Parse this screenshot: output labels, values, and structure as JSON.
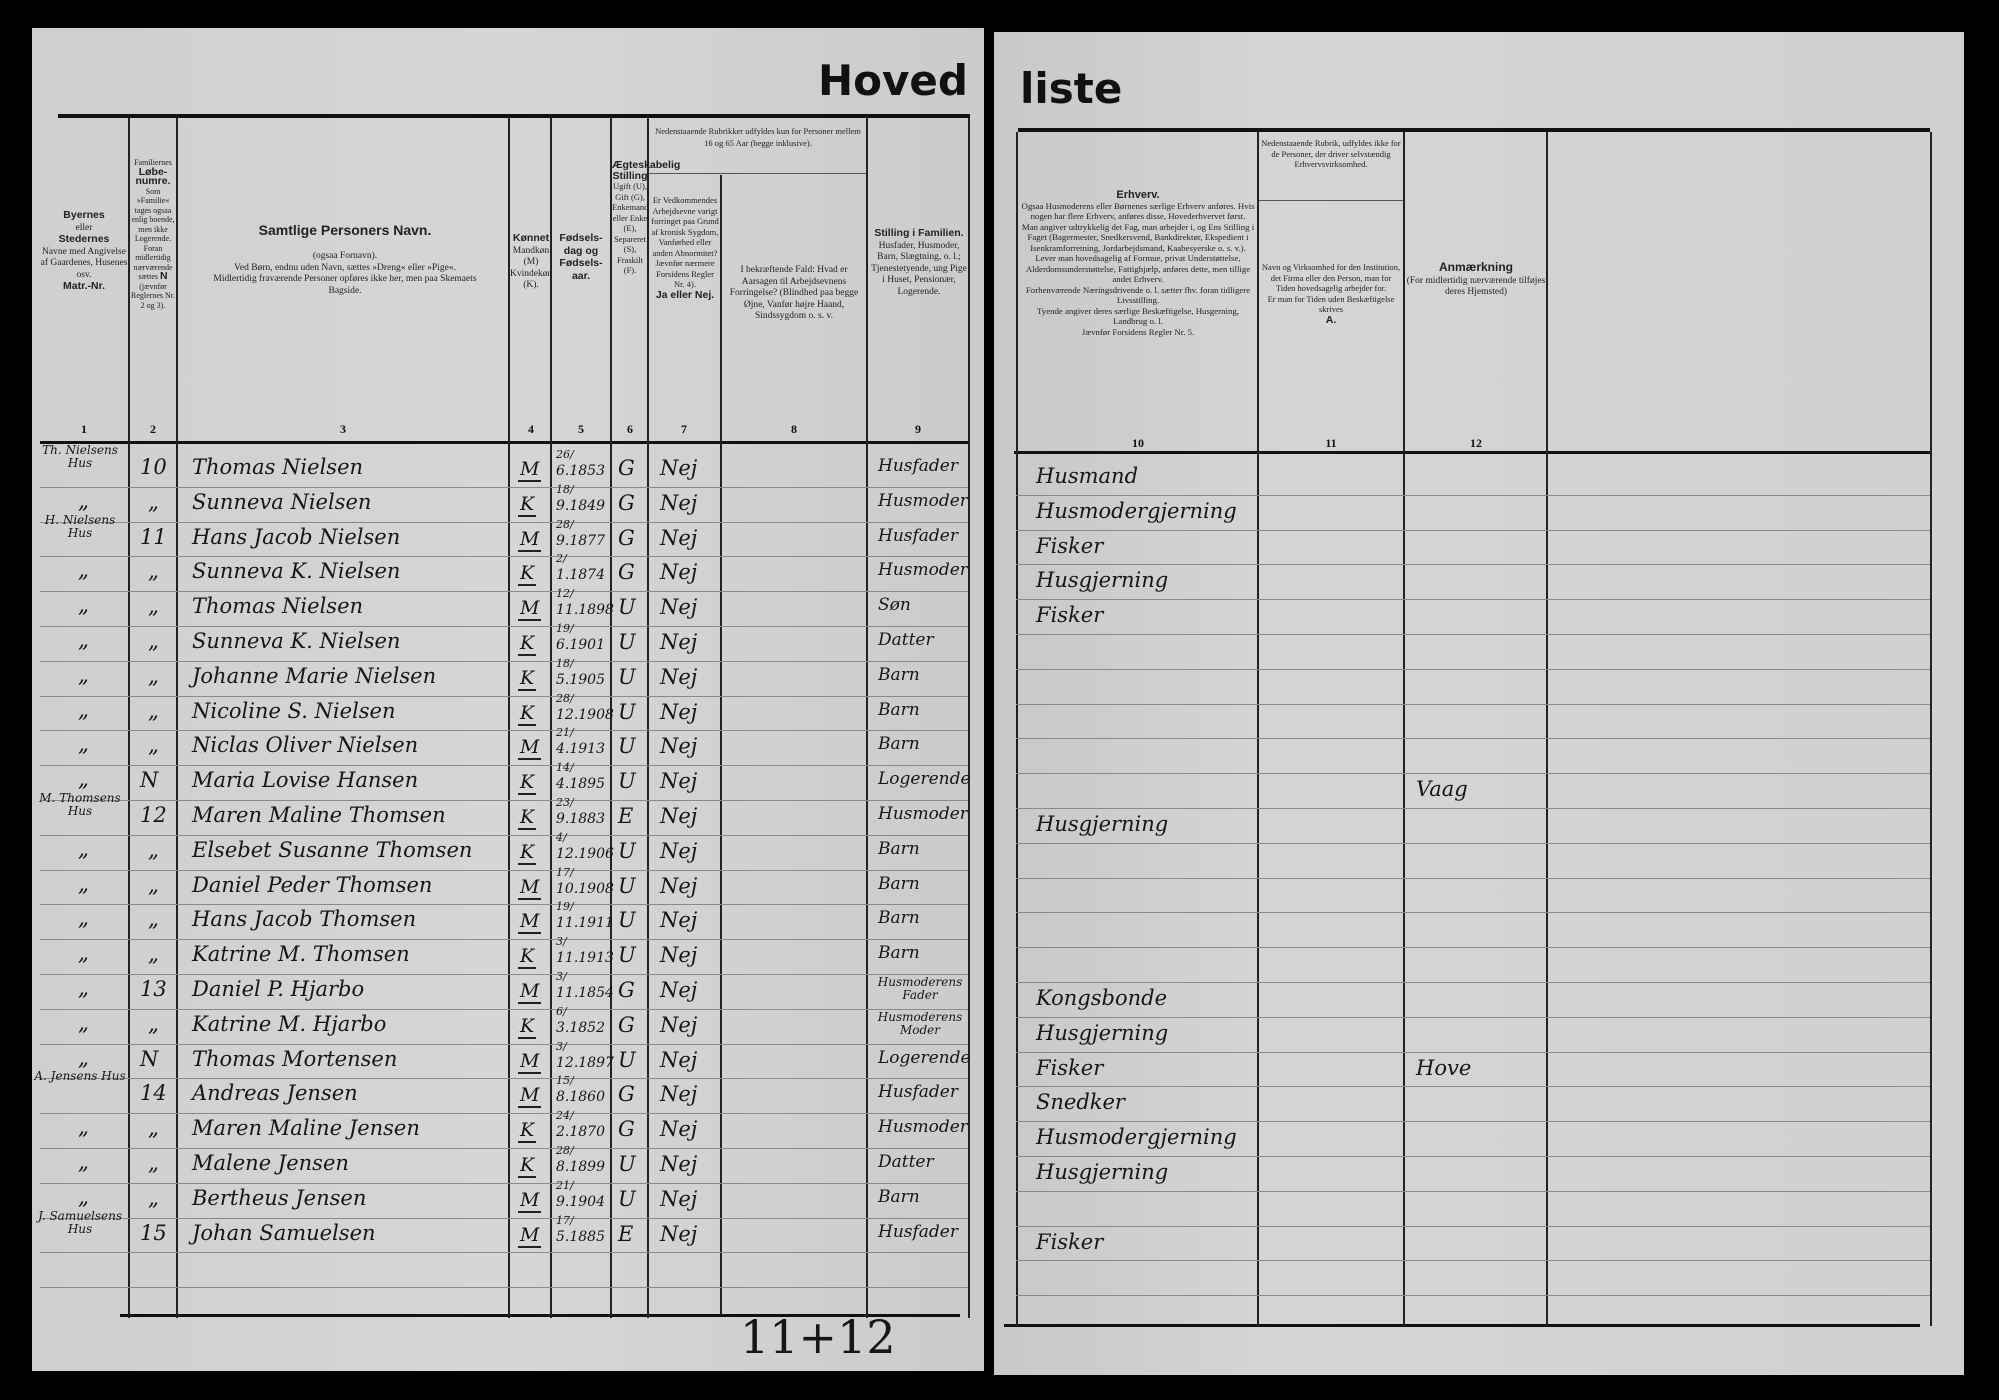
{
  "document": {
    "title_left": "Hoved",
    "title_right": "liste"
  },
  "headers": {
    "col1": {
      "line1": "Byernes",
      "line2": "eller",
      "line3": "Stedernes",
      "line4": "Navne med Angivelse af Gaardenes, Husenes osv.",
      "line5": "Matr.-Nr.",
      "number": "1"
    },
    "col2": {
      "line1": "Familiernes",
      "line2": "Løbe-numre.",
      "line3": "Som »Familie« tages ogsaa enlig boende, men ikke Logerende. Foran midlertidig nærværende sættes",
      "line4": "N",
      "line5": "(jævnfør Reglernes Nr. 2 og 3).",
      "number": "2"
    },
    "col3": {
      "line1": "Samtlige Personers Navn.",
      "line2": "(ogsaa Fornavn).",
      "line3": "Ved Børn, endnu uden Navn, sættes »Dreng« eller »Pige«.",
      "line4": "Midlertidig fraværende Personer opføres ikke her, men paa Skemaets Bagside.",
      "number": "3"
    },
    "col4": {
      "line1": "Kønnet",
      "line2": "Mandkøn (M) Kvindekøn (K).",
      "number": "4"
    },
    "col5": {
      "line1": "Fødsels-dag og Fødsels-aar.",
      "number": "5"
    },
    "col6": {
      "line1": "Ægteskabelig Stilling",
      "line2": "Ugift (U), Gift (G), Enkemand eller Enke (E), Separeret (S), Fraskilt (F).",
      "number": "6"
    },
    "col78_span": "Nedenstaaende Rubrikker udfyldes kun for Personer mellem 16 og 65 Aar (begge inklusive).",
    "col7": {
      "line1": "Er Vedkommendes Arbejdsevne varigt forringet paa Grund af kronisk Sygdom, Vanførhed eller anden Abnormitet? Jævnfør nærmere Forsidens Regler Nr. 4).",
      "line2": "Ja eller Nej.",
      "number": "7"
    },
    "col8": {
      "line1": "I bekræftende Fald: Hvad er Aarsagen til Arbejdsevnens Forringelse? (Blindhed paa begge Øjne, Vanfør højre Haand, Sindssygdom o. s. v.",
      "number": "8"
    },
    "col9": {
      "line1": "Stilling i Familien.",
      "line2": "Husfader, Husmoder, Barn, Slægtning, o. l.; Tjenestetyende, ung Pige i Huset, Pensionær, Logerende.",
      "number": "9"
    },
    "col10": {
      "line1": "Erhverv.",
      "line2": "Ogsaa Husmoderens eller Børnenes særlige Erhverv anføres. Hvis nogen har flere Erhverv, anføres disse, Hovederhvervet først.",
      "line3": "Man angiver udtrykkelig det Fag, man arbejder i, og Ens Stilling i Faget (Bagermester, Snedkersvend, Bankdirektør, Ekspedient i Isenkramforretning, Jordarbejdsmand, Kaabesyerske o. s. v.).",
      "line4": "Lever man hovedsagelig af Formue, privat Understøttelse, Alderdomsunderstøttelse, Fattighjælp, anføres dette, men tillige andet Erhverv.",
      "line5": "Forhenværende Næringsdrivende o. l. sætter fhv. foran tidligere Livsstilling.",
      "line6": "Tyende angiver deres særlige Beskæftigelse, Husgerning, Landbrug o. l.",
      "line7": "Jævnfør Forsidens Regler Nr. 5.",
      "number": "10"
    },
    "col11": {
      "line1": "Nedenstaaende Rubrik, udfyldes ikke for de Personer, der driver selvstændig Erhvervsvirksomhed.",
      "line2": "Navn og Virksomhed for den Institution, det Firma eller den Person, man for Tiden hovedsagelig arbejder for.",
      "line3": "Er man for Tiden uden Beskæftigelse skrives",
      "line4": "A.",
      "number": "11"
    },
    "col12": {
      "line1": "Anmærkning",
      "line2": "(For midlertidig nærværende tilføjes deres Hjemsted)",
      "number": "12"
    }
  },
  "rows": [
    {
      "place": "Th. Nielsens Hus",
      "family_no": "10",
      "name": "Thomas Nielsen",
      "sex": "M",
      "birth_day": "26/",
      "birth_rest": "6.1853",
      "marital": "G",
      "disabled": "Nej",
      "position": "Husfader",
      "occupation": "Husmand",
      "remark": ""
    },
    {
      "place": "„",
      "family_no": "„",
      "name": "Sunneva Nielsen",
      "sex": "K",
      "birth_day": "18/",
      "birth_rest": "9.1849",
      "marital": "G",
      "disabled": "Nej",
      "position": "Husmoder",
      "occupation": "Husmodergjerning",
      "remark": ""
    },
    {
      "place": "H. Nielsens Hus",
      "family_no": "11",
      "name": "Hans Jacob Nielsen",
      "sex": "M",
      "birth_day": "28/",
      "birth_rest": "9.1877",
      "marital": "G",
      "disabled": "Nej",
      "position": "Husfader",
      "occupation": "Fisker",
      "remark": ""
    },
    {
      "place": "„",
      "family_no": "„",
      "name": "Sunneva K. Nielsen",
      "sex": "K",
      "birth_day": "2/",
      "birth_rest": "1.1874",
      "marital": "G",
      "disabled": "Nej",
      "position": "Husmoder",
      "occupation": "Husgjerning",
      "remark": ""
    },
    {
      "place": "„",
      "family_no": "„",
      "name": "Thomas Nielsen",
      "sex": "M",
      "birth_day": "12/",
      "birth_rest": "11.1898",
      "marital": "U",
      "disabled": "Nej",
      "position": "Søn",
      "occupation": "Fisker",
      "remark": ""
    },
    {
      "place": "„",
      "family_no": "„",
      "name": "Sunneva K. Nielsen",
      "sex": "K",
      "birth_day": "19/",
      "birth_rest": "6.1901",
      "marital": "U",
      "disabled": "Nej",
      "position": "Datter",
      "occupation": "",
      "remark": ""
    },
    {
      "place": "„",
      "family_no": "„",
      "name": "Johanne Marie Nielsen",
      "sex": "K",
      "birth_day": "18/",
      "birth_rest": "5.1905",
      "marital": "U",
      "disabled": "Nej",
      "position": "Barn",
      "occupation": "",
      "remark": ""
    },
    {
      "place": "„",
      "family_no": "„",
      "name": "Nicoline S. Nielsen",
      "sex": "K",
      "birth_day": "28/",
      "birth_rest": "12.1908",
      "marital": "U",
      "disabled": "Nej",
      "position": "Barn",
      "occupation": "",
      "remark": ""
    },
    {
      "place": "„",
      "family_no": "„",
      "name": "Niclas Oliver Nielsen",
      "sex": "M",
      "birth_day": "21/",
      "birth_rest": "4.1913",
      "marital": "U",
      "disabled": "Nej",
      "position": "Barn",
      "occupation": "",
      "remark": ""
    },
    {
      "place": "„",
      "family_no": "N",
      "name": "Maria Lovise Hansen",
      "sex": "K",
      "birth_day": "14/",
      "birth_rest": "4.1895",
      "marital": "U",
      "disabled": "Nej",
      "position": "Logerende",
      "occupation": "",
      "remark": "Vaag"
    },
    {
      "place": "M. Thomsens Hus",
      "family_no": "12",
      "name": "Maren Maline Thomsen",
      "sex": "K",
      "birth_day": "23/",
      "birth_rest": "9.1883",
      "marital": "E",
      "disabled": "Nej",
      "position": "Husmoder",
      "occupation": "Husgjerning",
      "remark": ""
    },
    {
      "place": "„",
      "family_no": "„",
      "name": "Elsebet Susanne Thomsen",
      "sex": "K",
      "birth_day": "4/",
      "birth_rest": "12.1906",
      "marital": "U",
      "disabled": "Nej",
      "position": "Barn",
      "occupation": "",
      "remark": ""
    },
    {
      "place": "„",
      "family_no": "„",
      "name": "Daniel Peder Thomsen",
      "sex": "M",
      "birth_day": "17/",
      "birth_rest": "10.1908",
      "marital": "U",
      "disabled": "Nej",
      "position": "Barn",
      "occupation": "",
      "remark": ""
    },
    {
      "place": "„",
      "family_no": "„",
      "name": "Hans Jacob Thomsen",
      "sex": "M",
      "birth_day": "19/",
      "birth_rest": "11.1911",
      "marital": "U",
      "disabled": "Nej",
      "position": "Barn",
      "occupation": "",
      "remark": ""
    },
    {
      "place": "„",
      "family_no": "„",
      "name": "Katrine M. Thomsen",
      "sex": "K",
      "birth_day": "3/",
      "birth_rest": "11.1913",
      "marital": "U",
      "disabled": "Nej",
      "position": "Barn",
      "occupation": "",
      "remark": ""
    },
    {
      "place": "„",
      "family_no": "13",
      "name": "Daniel P. Hjarbo",
      "sex": "M",
      "birth_day": "3/",
      "birth_rest": "11.1854",
      "marital": "G",
      "disabled": "Nej",
      "position": "Husmoderens Fader",
      "occupation": "Kongsbonde",
      "remark": ""
    },
    {
      "place": "„",
      "family_no": "„",
      "name": "Katrine M. Hjarbo",
      "sex": "K",
      "birth_day": "6/",
      "birth_rest": "3.1852",
      "marital": "G",
      "disabled": "Nej",
      "position": "Husmoderens Moder",
      "occupation": "Husgjerning",
      "remark": ""
    },
    {
      "place": "„",
      "family_no": "N",
      "name": "Thomas Mortensen",
      "sex": "M",
      "birth_day": "3/",
      "birth_rest": "12.1897",
      "marital": "U",
      "disabled": "Nej",
      "position": "Logerende",
      "occupation": "Fisker",
      "remark": "Hove"
    },
    {
      "place": "A. Jensens Hus",
      "family_no": "14",
      "name": "Andreas Jensen",
      "sex": "M",
      "birth_day": "15/",
      "birth_rest": "8.1860",
      "marital": "G",
      "disabled": "Nej",
      "position": "Husfader",
      "occupation": "Snedker",
      "remark": ""
    },
    {
      "place": "„",
      "family_no": "„",
      "name": "Maren Maline Jensen",
      "sex": "K",
      "birth_day": "24/",
      "birth_rest": "2.1870",
      "marital": "G",
      "disabled": "Nej",
      "position": "Husmoder",
      "occupation": "Husmodergjerning",
      "remark": ""
    },
    {
      "place": "„",
      "family_no": "„",
      "name": "Malene Jensen",
      "sex": "K",
      "birth_day": "28/",
      "birth_rest": "8.1899",
      "marital": "U",
      "disabled": "Nej",
      "position": "Datter",
      "occupation": "Husgjerning",
      "remark": ""
    },
    {
      "place": "„",
      "family_no": "„",
      "name": "Bertheus Jensen",
      "sex": "M",
      "birth_day": "21/",
      "birth_rest": "9.1904",
      "marital": "U",
      "disabled": "Nej",
      "position": "Barn",
      "occupation": "",
      "remark": ""
    },
    {
      "place": "J. Samuelsens Hus",
      "family_no": "15",
      "name": "Johan Samuelsen",
      "sex": "M",
      "birth_day": "17/",
      "birth_rest": "5.1885",
      "marital": "E",
      "disabled": "Nej",
      "position": "Husfader",
      "occupation": "Fisker",
      "remark": ""
    }
  ],
  "bottom_note": "11+12"
}
